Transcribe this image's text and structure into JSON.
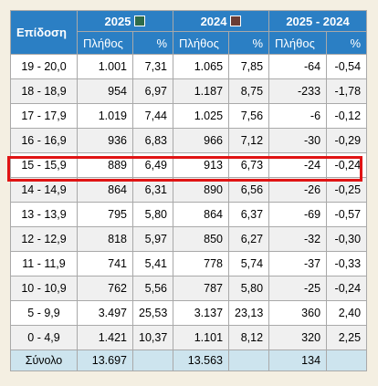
{
  "header": {
    "first_col": "Επίδοση",
    "group_2025": "2025",
    "group_2024": "2024",
    "group_diff": "2025 - 2024",
    "color_2025": "#2e6b4a",
    "color_2024": "#6a3c34",
    "sub_count": "Πλήθος",
    "sub_pct": "%"
  },
  "rows": [
    {
      "range": "19 - 20,0",
      "c25": "1.001",
      "p25": "7,31",
      "c24": "1.065",
      "p24": "7,85",
      "dc": "-64",
      "dp": "-0,54"
    },
    {
      "range": "18 - 18,9",
      "c25": "954",
      "p25": "6,97",
      "c24": "1.187",
      "p24": "8,75",
      "dc": "-233",
      "dp": "-1,78"
    },
    {
      "range": "17 - 17,9",
      "c25": "1.019",
      "p25": "7,44",
      "c24": "1.025",
      "p24": "7,56",
      "dc": "-6",
      "dp": "-0,12"
    },
    {
      "range": "16 - 16,9",
      "c25": "936",
      "p25": "6,83",
      "c24": "966",
      "p24": "7,12",
      "dc": "-30",
      "dp": "-0,29"
    },
    {
      "range": "15 - 15,9",
      "c25": "889",
      "p25": "6,49",
      "c24": "913",
      "p24": "6,73",
      "dc": "-24",
      "dp": "-0,24"
    },
    {
      "range": "14 - 14,9",
      "c25": "864",
      "p25": "6,31",
      "c24": "890",
      "p24": "6,56",
      "dc": "-26",
      "dp": "-0,25"
    },
    {
      "range": "13 - 13,9",
      "c25": "795",
      "p25": "5,80",
      "c24": "864",
      "p24": "6,37",
      "dc": "-69",
      "dp": "-0,57"
    },
    {
      "range": "12 - 12,9",
      "c25": "818",
      "p25": "5,97",
      "c24": "850",
      "p24": "6,27",
      "dc": "-32",
      "dp": "-0,30"
    },
    {
      "range": "11 - 11,9",
      "c25": "741",
      "p25": "5,41",
      "c24": "778",
      "p24": "5,74",
      "dc": "-37",
      "dp": "-0,33"
    },
    {
      "range": "10 - 10,9",
      "c25": "762",
      "p25": "5,56",
      "c24": "787",
      "p24": "5,80",
      "dc": "-25",
      "dp": "-0,24"
    },
    {
      "range": "5 - 9,9",
      "c25": "3.497",
      "p25": "25,53",
      "c24": "3.137",
      "p24": "23,13",
      "dc": "360",
      "dp": "2,40"
    },
    {
      "range": "0 - 4,9",
      "c25": "1.421",
      "p25": "10,37",
      "c24": "1.101",
      "p24": "8,12",
      "dc": "320",
      "dp": "2,25"
    }
  ],
  "total": {
    "label": "Σύνολο",
    "c25": "13.697",
    "c24": "13.563",
    "dc": "134"
  }
}
